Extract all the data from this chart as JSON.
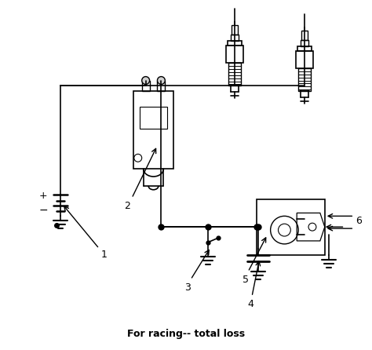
{
  "title": "For racing-- total loss",
  "title_fontsize": 9,
  "background_color": "#ffffff",
  "line_color": "#000000",
  "line_width": 1.2,
  "fig_width": 4.74,
  "fig_height": 4.46,
  "dpi": 100
}
